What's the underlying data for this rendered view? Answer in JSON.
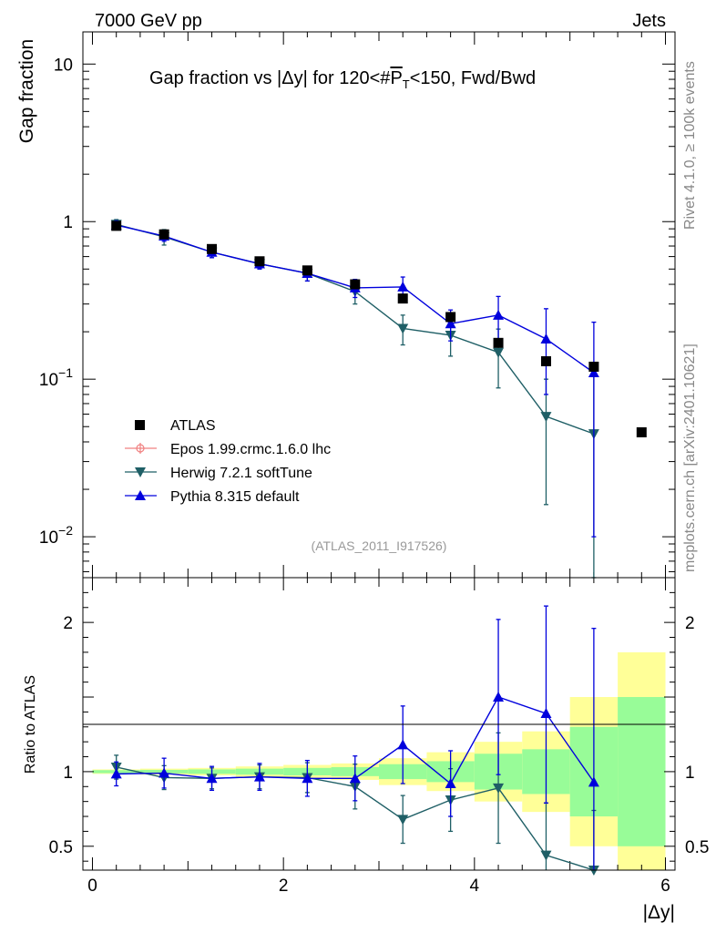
{
  "header": {
    "left": "7000 GeV pp",
    "right": "Jets",
    "side_top": "Rivet 4.1.0, ≥ 100k events",
    "side_bottom": "mcplots.cern.ch [arXiv:2401.10621]"
  },
  "chart_data": {
    "type": "scatter",
    "title": "Gap fraction vs |Δy| for 120<#P̅T<150, Fwd/Bwd",
    "title_parts": {
      "main": "Gap fraction vs |Δy| for 120<#",
      "p": "P",
      "sub": "T",
      "tail": "<150, Fwd/Bwd"
    },
    "ylabel": "Gap fraction",
    "ratio_ylabel": "Ratio to ATLAS",
    "xlabel": "|Δy|",
    "analysis_id": "(ATLAS_2011_I917526)",
    "xlim": [
      -0.1,
      6.1
    ],
    "ylim": [
      0.0055,
      16
    ],
    "ratio_ylim": [
      0.34,
      2.3
    ],
    "x_ticks": [
      0,
      2,
      4,
      6
    ],
    "x_tick_labels": [
      "0",
      "2",
      "4",
      "6"
    ],
    "y_ticks": [
      {
        "value": 10,
        "base": "10",
        "exp": ""
      },
      {
        "value": 1,
        "base": "1",
        "exp": ""
      },
      {
        "value": 0.1,
        "base": "10",
        "exp": "−1"
      },
      {
        "value": 0.01,
        "base": "10",
        "exp": "−2"
      }
    ],
    "ratio_ticks": [
      "0.5",
      "1",
      "2"
    ],
    "ratio_tick_values": [
      0.5,
      1,
      2
    ],
    "legend": {
      "atlas": "ATLAS",
      "epos": "Epos 1.99.crmc.1.6.0 lhc",
      "herwig": "Herwig 7.2.1 softTune",
      "pythia": "Pythia 8.315 default"
    },
    "colors": {
      "atlas": "#000000",
      "epos": "#f08080",
      "herwig": "#1f5f66",
      "pythia": "#0000dd",
      "band_inner": "#98fc98",
      "band_outer": "#ffff98"
    },
    "bins": [
      [
        0,
        0.5
      ],
      [
        0.5,
        1
      ],
      [
        1,
        1.5
      ],
      [
        1.5,
        2
      ],
      [
        2,
        2.5
      ],
      [
        2.5,
        3
      ],
      [
        3,
        3.5
      ],
      [
        3.5,
        4
      ],
      [
        4,
        4.5
      ],
      [
        4.5,
        5
      ],
      [
        5,
        5.5
      ],
      [
        5.5,
        6
      ]
    ],
    "band_inner": [
      0.01,
      0.012,
      0.015,
      0.02,
      0.025,
      0.03,
      0.05,
      0.07,
      0.12,
      0.15,
      0.3,
      0.5
    ],
    "band_outer": [
      0.015,
      0.02,
      0.025,
      0.035,
      0.045,
      0.055,
      0.09,
      0.13,
      0.2,
      0.27,
      0.5,
      0.8
    ],
    "series": [
      {
        "name": "ATLAS",
        "x": [
          0.25,
          0.75,
          1.25,
          1.75,
          2.25,
          2.75,
          3.25,
          3.75,
          4.25,
          4.75,
          5.25,
          5.75
        ],
        "y": [
          0.94,
          0.83,
          0.67,
          0.56,
          0.49,
          0.4,
          0.325,
          0.248,
          0.17,
          0.13,
          0.12,
          0.046
        ]
      },
      {
        "name": "Herwig 7.2.1 softTune",
        "x": [
          0.25,
          0.75,
          1.25,
          1.75,
          2.25,
          2.75,
          3.25,
          3.75,
          4.25,
          4.75,
          5.25
        ],
        "y": [
          0.96,
          0.8,
          0.64,
          0.54,
          0.47,
          0.36,
          0.21,
          0.19,
          0.148,
          0.058,
          0.045
        ],
        "err_lo": [
          0.07,
          0.09,
          0.05,
          0.04,
          0.05,
          0.06,
          0.045,
          0.05,
          0.06,
          0.042,
          0.0445
        ],
        "err_hi": [
          0.07,
          0.09,
          0.05,
          0.04,
          0.05,
          0.06,
          0.045,
          0.05,
          0.06,
          0.042,
          0.066
        ],
        "ratio": [
          1.03,
          0.96,
          0.955,
          0.965,
          0.96,
          0.9,
          0.68,
          0.81,
          0.89,
          0.44,
          0.34
        ],
        "ratio_lo": [
          0.08,
          0.08,
          0.07,
          0.08,
          0.1,
          0.15,
          0.16,
          0.21,
          0.37,
          0.35,
          0.34
        ],
        "ratio_hi": [
          0.08,
          0.08,
          0.07,
          0.08,
          0.1,
          0.15,
          0.16,
          0.21,
          0.37,
          0.35,
          0.4
        ]
      },
      {
        "name": "Pythia 8.315 default",
        "x": [
          0.25,
          0.75,
          1.25,
          1.75,
          2.25,
          2.75,
          3.25,
          3.75,
          4.25,
          4.75,
          5.25
        ],
        "y": [
          0.95,
          0.81,
          0.64,
          0.54,
          0.47,
          0.38,
          0.385,
          0.225,
          0.255,
          0.18,
          0.11
        ],
        "err_lo": [
          0.06,
          0.06,
          0.05,
          0.04,
          0.05,
          0.05,
          0.06,
          0.05,
          0.08,
          0.1,
          0.1
        ],
        "err_hi": [
          0.06,
          0.06,
          0.05,
          0.04,
          0.05,
          0.05,
          0.06,
          0.05,
          0.08,
          0.1,
          0.12
        ],
        "ratio": [
          0.985,
          0.99,
          0.955,
          0.965,
          0.955,
          0.955,
          1.18,
          0.92,
          1.5,
          1.39,
          0.93
        ],
        "ratio_lo": [
          0.08,
          0.1,
          0.08,
          0.09,
          0.12,
          0.15,
          0.26,
          0.22,
          0.52,
          0.6,
          0.93
        ],
        "ratio_hi": [
          0.08,
          0.1,
          0.08,
          0.09,
          0.12,
          0.15,
          0.26,
          0.22,
          0.52,
          0.72,
          1.03
        ]
      }
    ]
  }
}
